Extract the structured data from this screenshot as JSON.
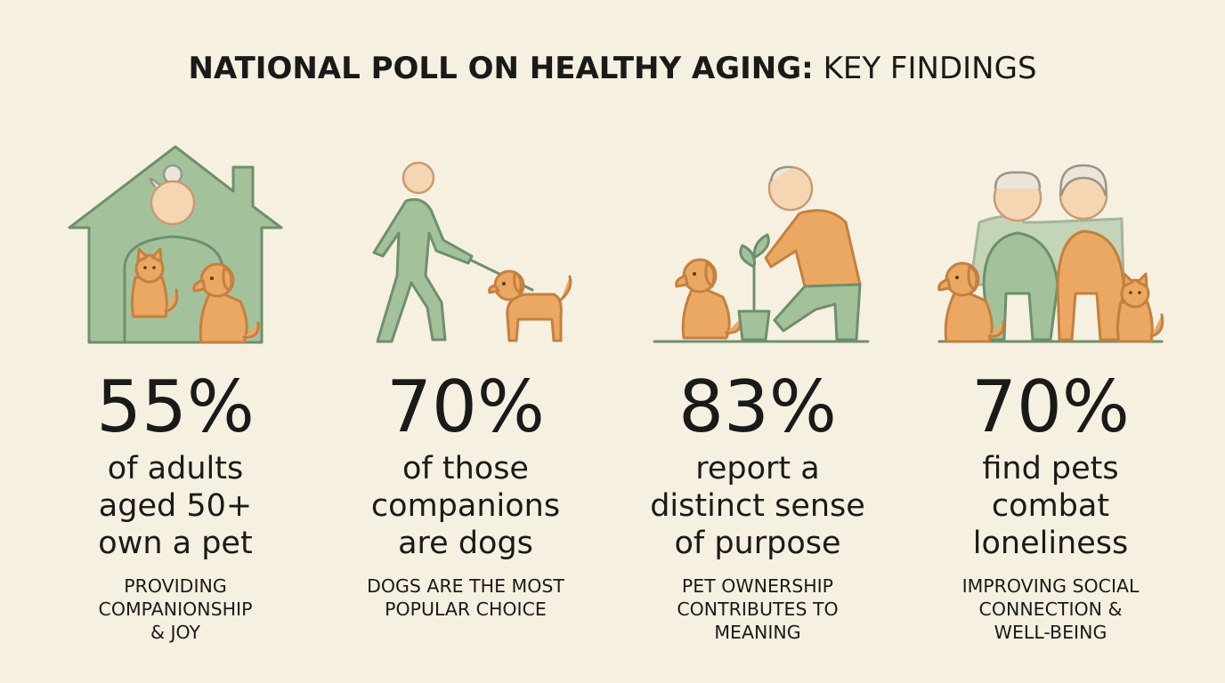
{
  "header": {
    "title_emphasis": "NATIONAL POLL ON HEALTHY AGING:",
    "title_rest": "KEY FINDINGS"
  },
  "findings": [
    {
      "stat": "55%",
      "description": [
        "of adults",
        "aged 50+",
        "own a pet"
      ],
      "note": [
        "PROVIDING",
        "COMPANIONSHIP",
        "& JOY"
      ]
    },
    {
      "stat": "70%",
      "description": [
        "of those",
        "companions",
        "are dogs"
      ],
      "note": [
        "DOGS ARE THE MOST",
        "POPULAR CHOICE"
      ]
    },
    {
      "stat": "83%",
      "description": [
        "report a",
        "distinct sense",
        "of purpose"
      ],
      "note": [
        "PET OWNERSHIP",
        "CONTRIBUTES TO",
        "MEANING"
      ]
    },
    {
      "stat": "70%",
      "description": [
        "find pets",
        "combat",
        "loneliness"
      ],
      "note": [
        "IMPROVING SOCIAL",
        "CONNECTION &",
        "WELL-BEING"
      ]
    }
  ]
}
